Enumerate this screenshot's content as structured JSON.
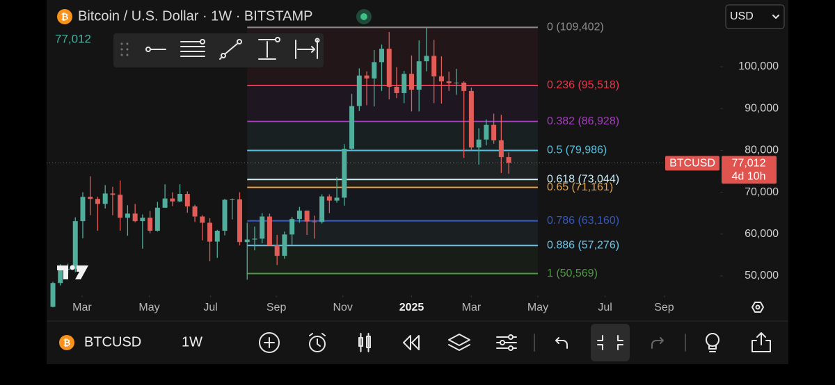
{
  "header": {
    "title": "Bitcoin / U.S. Dollar · 1W · BITSTAMP",
    "currency": "USD"
  },
  "chart_data": {
    "type": "candlestick",
    "x": [
      0,
      1,
      2,
      3,
      4,
      5,
      6,
      7,
      8,
      9,
      10,
      11,
      12,
      13,
      14,
      15,
      16,
      17,
      18,
      19,
      20,
      21,
      22,
      23,
      24,
      25,
      26,
      27,
      28,
      29,
      30,
      31,
      32,
      33,
      34,
      35,
      36,
      37,
      38,
      39,
      40,
      41,
      42,
      43,
      44,
      45,
      46,
      47,
      48,
      49,
      50,
      51,
      52,
      53,
      54,
      55,
      56,
      57,
      58,
      59,
      60,
      61
    ],
    "open": [
      42600,
      48300,
      51600,
      51700,
      63100,
      68900,
      68400,
      67200,
      69700,
      69400,
      63900,
      64900,
      63100,
      63900,
      60800,
      66300,
      68500,
      67800,
      69600,
      66600,
      64200,
      62700,
      58200,
      60800,
      68200,
      68300,
      58100,
      58700,
      58900,
      64200,
      57300,
      54800,
      59900,
      63600,
      65600,
      63000,
      62900,
      69000,
      68000,
      68700,
      80400,
      90600,
      97900,
      97200,
      101100,
      104300,
      95200,
      93700,
      98300,
      94500,
      101300,
      102600,
      97700,
      96500,
      96100,
      96200,
      94200,
      80700,
      82600,
      86100,
      82400,
      78400
    ],
    "high": [
      48600,
      52800,
      52900,
      64000,
      70000,
      73800,
      68900,
      71700,
      71300,
      72800,
      66900,
      67200,
      64700,
      65500,
      67700,
      71900,
      70000,
      71900,
      70200,
      67000,
      64500,
      63800,
      61000,
      68400,
      68500,
      70000,
      62700,
      61800,
      65000,
      64900,
      59800,
      60600,
      64100,
      66500,
      65600,
      64400,
      69500,
      69500,
      73600,
      81500,
      93500,
      99600,
      98900,
      104000,
      105300,
      108300,
      99900,
      99000,
      102700,
      106300,
      109402,
      106400,
      102500,
      98800,
      99500,
      96500,
      95000,
      85300,
      87400,
      88800,
      88500,
      79500
    ],
    "low": [
      42500,
      47700,
      50600,
      50900,
      59000,
      64500,
      60800,
      66100,
      64500,
      60800,
      59600,
      62800,
      56500,
      60200,
      60600,
      66300,
      66700,
      67600,
      65100,
      62900,
      58500,
      53500,
      54300,
      59700,
      63500,
      57300,
      49100,
      56100,
      57800,
      57200,
      52600,
      54100,
      57500,
      62700,
      59800,
      58900,
      62500,
      65000,
      67500,
      66800,
      80000,
      89400,
      90800,
      90500,
      94200,
      92200,
      92500,
      91300,
      89300,
      89300,
      98900,
      91300,
      91200,
      94200,
      93300,
      78200,
      80000,
      76600,
      81200,
      81600,
      74600,
      74400
    ],
    "close": [
      48300,
      51600,
      51700,
      63100,
      68900,
      68400,
      67200,
      69700,
      69400,
      63900,
      64900,
      63100,
      63900,
      60800,
      66300,
      68500,
      67800,
      69600,
      66600,
      64200,
      62700,
      58200,
      60800,
      68200,
      68300,
      58100,
      58700,
      58900,
      64200,
      57300,
      54800,
      59900,
      63600,
      65600,
      63000,
      62900,
      69000,
      68000,
      68700,
      80400,
      90600,
      97900,
      97200,
      101100,
      104300,
      95200,
      93700,
      98300,
      94500,
      101300,
      102600,
      97700,
      96500,
      96100,
      96200,
      94200,
      80700,
      82600,
      86100,
      82400,
      78400,
      77012
    ],
    "up_color": "#4fae9c",
    "down_color": "#e25c58",
    "xlim": [
      -0.84,
      89.3
    ],
    "xticks": [
      {
        "value": 3.9,
        "label": "Mar"
      },
      {
        "value": 12.9,
        "label": "May"
      },
      {
        "value": 21.1,
        "label": "Jul"
      },
      {
        "value": 29.9,
        "label": "Sep"
      },
      {
        "value": 38.8,
        "label": "Nov"
      },
      {
        "value": 48.0,
        "label": "2025"
      },
      {
        "value": 56.0,
        "label": "Mar"
      },
      {
        "value": 64.9,
        "label": "May"
      },
      {
        "value": 73.9,
        "label": "Jul"
      },
      {
        "value": 81.8,
        "label": "Sep"
      }
    ],
    "ylim": [
      45350,
      115950
    ],
    "yticks": [
      {
        "value": 50000,
        "label": "50,000"
      },
      {
        "value": 60000,
        "label": "60,000"
      },
      {
        "value": 70000,
        "label": "70,000"
      },
      {
        "value": 80000,
        "label": "80,000"
      },
      {
        "value": 90000,
        "label": "90,000"
      },
      {
        "value": 100000,
        "label": "100,000"
      }
    ],
    "fib_range": [
      26.0,
      64.9
    ],
    "fib_levels": [
      {
        "label": "0 (109,402)",
        "value": 109402,
        "color": "#8c8c8c"
      },
      {
        "label": "0.236 (95,518)",
        "value": 95518,
        "color": "#e8384f"
      },
      {
        "label": "0.382 (86,928)",
        "value": 86928,
        "color": "#a53fc0"
      },
      {
        "label": "0.5 (79,986)",
        "value": 79986,
        "color": "#54c2e0"
      },
      {
        "label": "0.618 (73,044)",
        "value": 73044,
        "color": "#c9ecf7"
      },
      {
        "label": "0.65 (71,161)",
        "value": 71161,
        "color": "#e9a34a"
      },
      {
        "label": "0.786 (63,160)",
        "value": 63160,
        "color": "#3458c4"
      },
      {
        "label": "0.886 (57,276)",
        "value": 57276,
        "color": "#6cc3e8"
      },
      {
        "label": "1 (50,569)",
        "value": 50569,
        "color": "#4e9b45"
      }
    ],
    "last_price": {
      "value": 77012,
      "label": "77,012",
      "symbol": "BTCUSD",
      "countdown": "4d 10h",
      "color": "#e0544f"
    }
  },
  "footer": {
    "symbol": "BTCUSD",
    "interval": "1W"
  }
}
